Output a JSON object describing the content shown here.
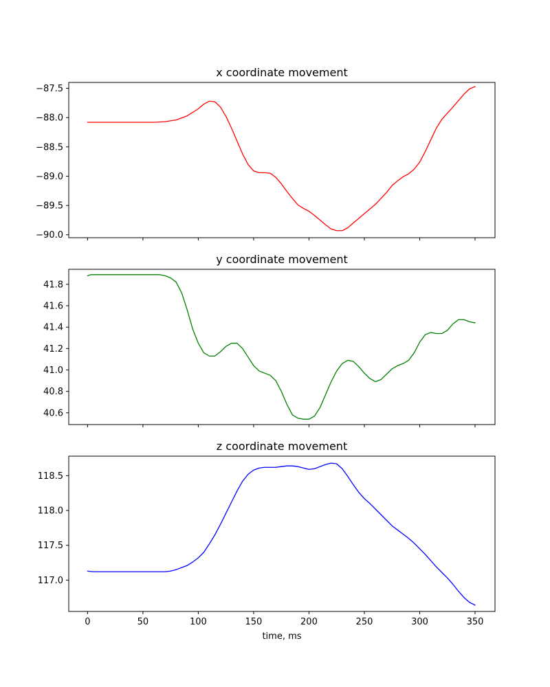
{
  "chart_data": [
    {
      "type": "line",
      "title": "x coordinate movement",
      "xlabel": "",
      "ylabel": "",
      "xlim": [
        -17,
        368
      ],
      "ylim": [
        -90.05,
        -87.4
      ],
      "x_ticks": [
        0,
        50,
        100,
        150,
        200,
        250,
        300,
        350
      ],
      "show_x_tick_labels": false,
      "y_ticks": [
        -90.0,
        -89.5,
        -89.0,
        -88.5,
        -88.0,
        -87.5
      ],
      "y_tick_labels": [
        "−90.0",
        "−89.5",
        "−89.0",
        "−88.5",
        "−88.0",
        "−87.5"
      ],
      "grid": false,
      "color": "#ff0000",
      "series": [
        {
          "x": [
            0,
            20,
            40,
            60,
            70,
            80,
            90,
            100,
            105,
            110,
            115,
            120,
            125,
            130,
            135,
            140,
            145,
            150,
            155,
            160,
            165,
            170,
            175,
            180,
            185,
            190,
            195,
            200,
            205,
            210,
            215,
            220,
            225,
            230,
            235,
            240,
            245,
            250,
            260,
            270,
            275,
            280,
            285,
            290,
            295,
            300,
            305,
            310,
            315,
            320,
            330,
            340,
            345,
            350
          ],
          "y": [
            -88.08,
            -88.08,
            -88.08,
            -88.08,
            -88.07,
            -88.04,
            -87.97,
            -87.85,
            -87.77,
            -87.72,
            -87.73,
            -87.82,
            -87.98,
            -88.18,
            -88.4,
            -88.62,
            -88.8,
            -88.91,
            -88.94,
            -88.94,
            -88.95,
            -89.02,
            -89.13,
            -89.26,
            -89.38,
            -89.49,
            -89.55,
            -89.6,
            -89.67,
            -89.75,
            -89.83,
            -89.9,
            -89.93,
            -89.93,
            -89.88,
            -89.8,
            -89.72,
            -89.64,
            -89.48,
            -89.28,
            -89.16,
            -89.08,
            -89.01,
            -88.96,
            -88.88,
            -88.76,
            -88.58,
            -88.38,
            -88.18,
            -88.03,
            -87.82,
            -87.6,
            -87.51,
            -87.47
          ]
        }
      ]
    },
    {
      "type": "line",
      "title": "y coordinate movement",
      "xlabel": "",
      "ylabel": "",
      "xlim": [
        -17,
        368
      ],
      "ylim": [
        40.49,
        41.94
      ],
      "x_ticks": [
        0,
        50,
        100,
        150,
        200,
        250,
        300,
        350
      ],
      "show_x_tick_labels": false,
      "y_ticks": [
        40.6,
        40.8,
        41.0,
        41.2,
        41.4,
        41.6,
        41.8
      ],
      "y_tick_labels": [
        "40.6",
        "40.8",
        "41.0",
        "41.2",
        "41.4",
        "41.6",
        "41.8"
      ],
      "grid": false,
      "color": "#008000",
      "series": [
        {
          "x": [
            0,
            3,
            20,
            40,
            60,
            65,
            70,
            75,
            80,
            85,
            90,
            95,
            100,
            105,
            110,
            115,
            120,
            125,
            130,
            135,
            140,
            145,
            150,
            155,
            160,
            165,
            170,
            175,
            180,
            185,
            190,
            195,
            200,
            205,
            210,
            215,
            220,
            225,
            230,
            235,
            240,
            245,
            250,
            255,
            260,
            265,
            270,
            275,
            280,
            285,
            290,
            295,
            300,
            305,
            310,
            315,
            320,
            325,
            330,
            335,
            340,
            345,
            350
          ],
          "y": [
            41.88,
            41.89,
            41.89,
            41.89,
            41.89,
            41.89,
            41.88,
            41.86,
            41.82,
            41.72,
            41.56,
            41.38,
            41.25,
            41.16,
            41.13,
            41.13,
            41.17,
            41.22,
            41.25,
            41.25,
            41.2,
            41.12,
            41.04,
            40.99,
            40.97,
            40.95,
            40.9,
            40.8,
            40.68,
            40.58,
            40.55,
            40.54,
            40.54,
            40.57,
            40.65,
            40.77,
            40.89,
            40.99,
            41.06,
            41.09,
            41.08,
            41.03,
            40.97,
            40.92,
            40.89,
            40.91,
            40.96,
            41.01,
            41.04,
            41.06,
            41.09,
            41.16,
            41.26,
            41.33,
            41.35,
            41.34,
            41.34,
            41.37,
            41.43,
            41.47,
            41.47,
            41.45,
            41.44
          ]
        }
      ]
    },
    {
      "type": "line",
      "title": "z coordinate movement",
      "xlabel": "time, ms",
      "ylabel": "",
      "xlim": [
        -17,
        368
      ],
      "ylim": [
        116.55,
        118.78
      ],
      "x_ticks": [
        0,
        50,
        100,
        150,
        200,
        250,
        300,
        350
      ],
      "show_x_tick_labels": true,
      "y_ticks": [
        117.0,
        117.5,
        118.0,
        118.5
      ],
      "y_tick_labels": [
        "117.0",
        "117.5",
        "118.0",
        "118.5"
      ],
      "grid": false,
      "color": "#0000ff",
      "series": [
        {
          "x": [
            0,
            5,
            20,
            40,
            60,
            70,
            75,
            80,
            85,
            90,
            95,
            100,
            105,
            110,
            115,
            120,
            125,
            130,
            135,
            140,
            145,
            150,
            155,
            160,
            165,
            170,
            175,
            180,
            185,
            190,
            195,
            200,
            205,
            210,
            215,
            220,
            225,
            230,
            235,
            240,
            245,
            250,
            255,
            260,
            265,
            270,
            275,
            280,
            285,
            290,
            295,
            300,
            305,
            310,
            315,
            320,
            325,
            330,
            335,
            340,
            345,
            350
          ],
          "y": [
            117.13,
            117.12,
            117.12,
            117.12,
            117.12,
            117.12,
            117.13,
            117.15,
            117.18,
            117.21,
            117.26,
            117.32,
            117.4,
            117.52,
            117.65,
            117.8,
            117.96,
            118.12,
            118.28,
            118.42,
            118.52,
            118.58,
            118.61,
            118.62,
            118.62,
            118.62,
            118.63,
            118.64,
            118.64,
            118.63,
            118.61,
            118.59,
            118.6,
            118.63,
            118.66,
            118.68,
            118.67,
            118.6,
            118.49,
            118.37,
            118.26,
            118.17,
            118.1,
            118.02,
            117.94,
            117.86,
            117.78,
            117.72,
            117.66,
            117.6,
            117.53,
            117.45,
            117.37,
            117.28,
            117.19,
            117.11,
            117.03,
            116.94,
            116.84,
            116.75,
            116.68,
            116.64
          ]
        }
      ]
    }
  ]
}
